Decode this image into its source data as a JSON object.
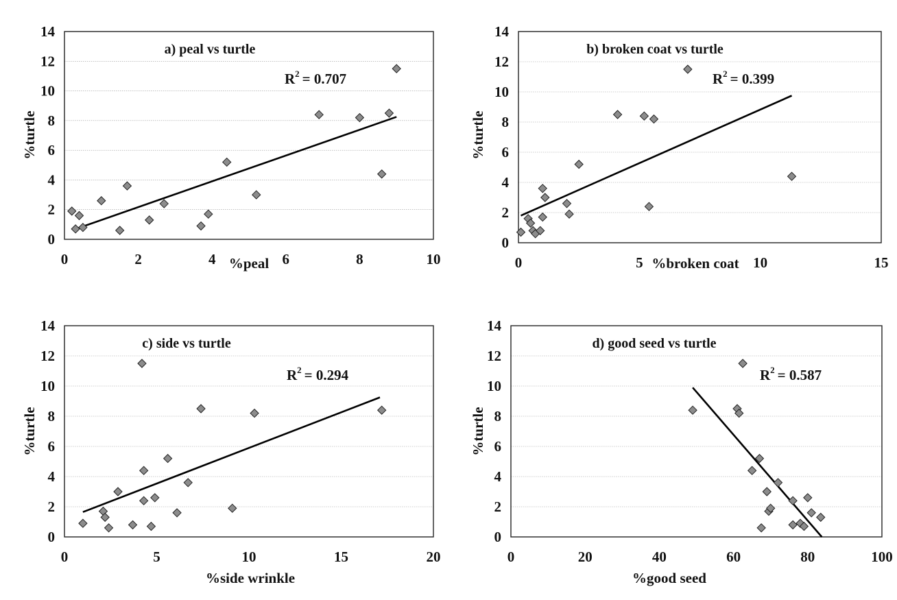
{
  "chart_data": [
    {
      "type": "scatter",
      "title": "a) peal vs turtle",
      "annotation": "R",
      "annotation_sup": "2",
      "annotation_value": "= 0.707",
      "xlabel": "%peal",
      "ylabel": "%turtle",
      "xlim": [
        0,
        10
      ],
      "ylim": [
        0,
        14
      ],
      "xticks": [
        "0",
        "2",
        "4",
        "6",
        "8",
        "10"
      ],
      "yticks": [
        "0",
        "2",
        "4",
        "6",
        "8",
        "10",
        "12",
        "14"
      ],
      "points": [
        [
          0.2,
          1.9
        ],
        [
          0.3,
          0.7
        ],
        [
          0.4,
          1.6
        ],
        [
          0.5,
          0.8
        ],
        [
          1.0,
          2.6
        ],
        [
          1.5,
          0.6
        ],
        [
          1.7,
          3.6
        ],
        [
          2.3,
          1.3
        ],
        [
          2.7,
          2.4
        ],
        [
          3.7,
          0.9
        ],
        [
          3.9,
          1.7
        ],
        [
          4.4,
          5.2
        ],
        [
          5.2,
          3.0
        ],
        [
          6.9,
          8.4
        ],
        [
          8.0,
          8.2
        ],
        [
          8.6,
          4.4
        ],
        [
          8.8,
          8.5
        ],
        [
          9.0,
          11.5
        ]
      ],
      "trendline": [
        [
          0.25,
          0.65
        ],
        [
          9.0,
          8.25
        ]
      ],
      "grid": true,
      "legend": "none"
    },
    {
      "type": "scatter",
      "title": "b) broken coat vs turtle",
      "annotation": "R",
      "annotation_sup": "2",
      "annotation_value": "= 0.399",
      "xlabel": "%broken coat",
      "ylabel": "%turtle",
      "xlim": [
        0,
        15
      ],
      "ylim": [
        0,
        14
      ],
      "xticks": [
        "0",
        "5",
        "10",
        "15"
      ],
      "yticks": [
        "0",
        "2",
        "4",
        "6",
        "8",
        "10",
        "12",
        "14"
      ],
      "points": [
        [
          0.1,
          0.7
        ],
        [
          0.4,
          1.6
        ],
        [
          0.5,
          1.3
        ],
        [
          0.6,
          0.8
        ],
        [
          0.7,
          0.6
        ],
        [
          0.9,
          0.8
        ],
        [
          1.0,
          3.6
        ],
        [
          1.1,
          3.0
        ],
        [
          1.0,
          1.7
        ],
        [
          2.0,
          2.6
        ],
        [
          2.1,
          1.9
        ],
        [
          2.5,
          5.2
        ],
        [
          4.1,
          8.5
        ],
        [
          5.2,
          8.4
        ],
        [
          5.4,
          2.4
        ],
        [
          5.6,
          8.2
        ],
        [
          7.0,
          11.5
        ],
        [
          11.3,
          4.4
        ]
      ],
      "trendline": [
        [
          0.1,
          1.8
        ],
        [
          11.3,
          9.75
        ]
      ],
      "grid": true,
      "legend": "none"
    },
    {
      "type": "scatter",
      "title": "c) side vs turtle",
      "annotation": "R",
      "annotation_sup": "2",
      "annotation_value": "= 0.294",
      "xlabel": "%side wrinkle",
      "ylabel": "%turtle",
      "xlim": [
        0,
        20
      ],
      "ylim": [
        0,
        14
      ],
      "xticks": [
        "0",
        "5",
        "10",
        "15",
        "20"
      ],
      "yticks": [
        "0",
        "2",
        "4",
        "6",
        "8",
        "10",
        "12",
        "14"
      ],
      "points": [
        [
          1.0,
          0.9
        ],
        [
          2.1,
          1.7
        ],
        [
          2.2,
          1.3
        ],
        [
          2.4,
          0.6
        ],
        [
          2.9,
          3.0
        ],
        [
          3.7,
          0.8
        ],
        [
          4.2,
          11.5
        ],
        [
          4.3,
          2.4
        ],
        [
          4.3,
          4.4
        ],
        [
          4.7,
          0.7
        ],
        [
          4.9,
          2.6
        ],
        [
          5.6,
          5.2
        ],
        [
          6.1,
          1.6
        ],
        [
          6.7,
          3.6
        ],
        [
          7.4,
          8.5
        ],
        [
          9.1,
          1.9
        ],
        [
          10.3,
          8.2
        ],
        [
          17.2,
          8.4
        ]
      ],
      "trendline": [
        [
          1.0,
          1.65
        ],
        [
          17.1,
          9.25
        ]
      ],
      "grid": true,
      "legend": "none"
    },
    {
      "type": "scatter",
      "title": "d) good seed vs turtle",
      "annotation": "R",
      "annotation_sup": "2",
      "annotation_value": "= 0.587",
      "xlabel": "%good seed",
      "ylabel": "%turtle",
      "xlim": [
        0,
        100
      ],
      "ylim": [
        0,
        14
      ],
      "xticks": [
        "0",
        "20",
        "40",
        "60",
        "80",
        "100"
      ],
      "yticks": [
        "0",
        "2",
        "4",
        "6",
        "8",
        "10",
        "12",
        "14"
      ],
      "points": [
        [
          49,
          8.4
        ],
        [
          61,
          8.5
        ],
        [
          61.5,
          8.2
        ],
        [
          62.5,
          11.5
        ],
        [
          65,
          4.4
        ],
        [
          67,
          5.2
        ],
        [
          67.5,
          0.6
        ],
        [
          69,
          3.0
        ],
        [
          69.5,
          1.7
        ],
        [
          70,
          1.9
        ],
        [
          72,
          3.6
        ],
        [
          76,
          2.4
        ],
        [
          76,
          0.8
        ],
        [
          78,
          0.9
        ],
        [
          79,
          0.7
        ],
        [
          80,
          2.6
        ],
        [
          81,
          1.6
        ],
        [
          83.5,
          1.3
        ]
      ],
      "trendline": [
        [
          49,
          9.9
        ],
        [
          83.8,
          0.0
        ]
      ],
      "grid": true,
      "legend": "none"
    }
  ]
}
